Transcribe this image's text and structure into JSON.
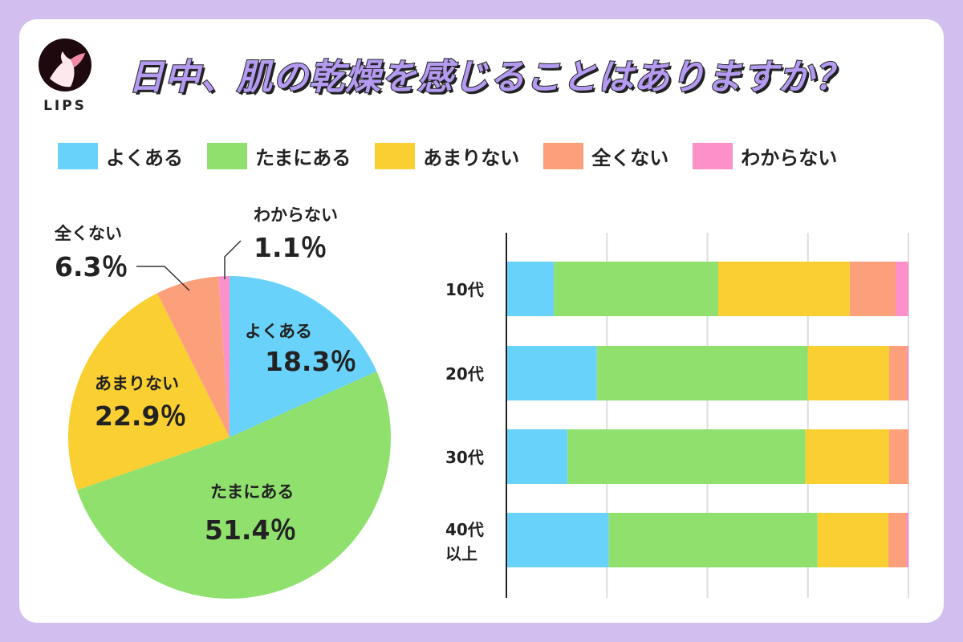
{
  "logo": {
    "text": "LIPS"
  },
  "title": "日中、肌の乾燥を感じることはありますか？",
  "colors": [
    "#68d2fa",
    "#8fe06c",
    "#f9cf32",
    "#fca07b",
    "#fc90c8"
  ],
  "chart_data": [
    {
      "type": "pie",
      "categories": [
        "よくある",
        "たまにある",
        "あまりない",
        "全くない",
        "わからない"
      ],
      "values": [
        18.3,
        51.4,
        22.9,
        6.3,
        1.1
      ],
      "labels": [
        "18.3％",
        "51.4％",
        "22.9％",
        "6.3％",
        "1.1％"
      ],
      "legend": "top"
    },
    {
      "type": "bar",
      "orientation": "horizontal",
      "stacked": true,
      "categories": [
        "10代",
        "20代",
        "30代",
        "40代以上"
      ],
      "xlim": [
        0,
        100
      ],
      "grid": true,
      "series": [
        {
          "name": "よくある",
          "values": [
            11.8,
            22.5,
            15.2,
            25.5
          ]
        },
        {
          "name": "たまにある",
          "values": [
            40.9,
            52.5,
            59.2,
            51.9
          ]
        },
        {
          "name": "あまりない",
          "values": [
            32.7,
            20.2,
            20.8,
            17.6
          ]
        },
        {
          "name": "全くない",
          "values": [
            11.4,
            4.4,
            4.8,
            4.4
          ]
        },
        {
          "name": "わからない",
          "values": [
            3.2,
            0.4,
            0,
            0.6
          ]
        }
      ]
    }
  ]
}
